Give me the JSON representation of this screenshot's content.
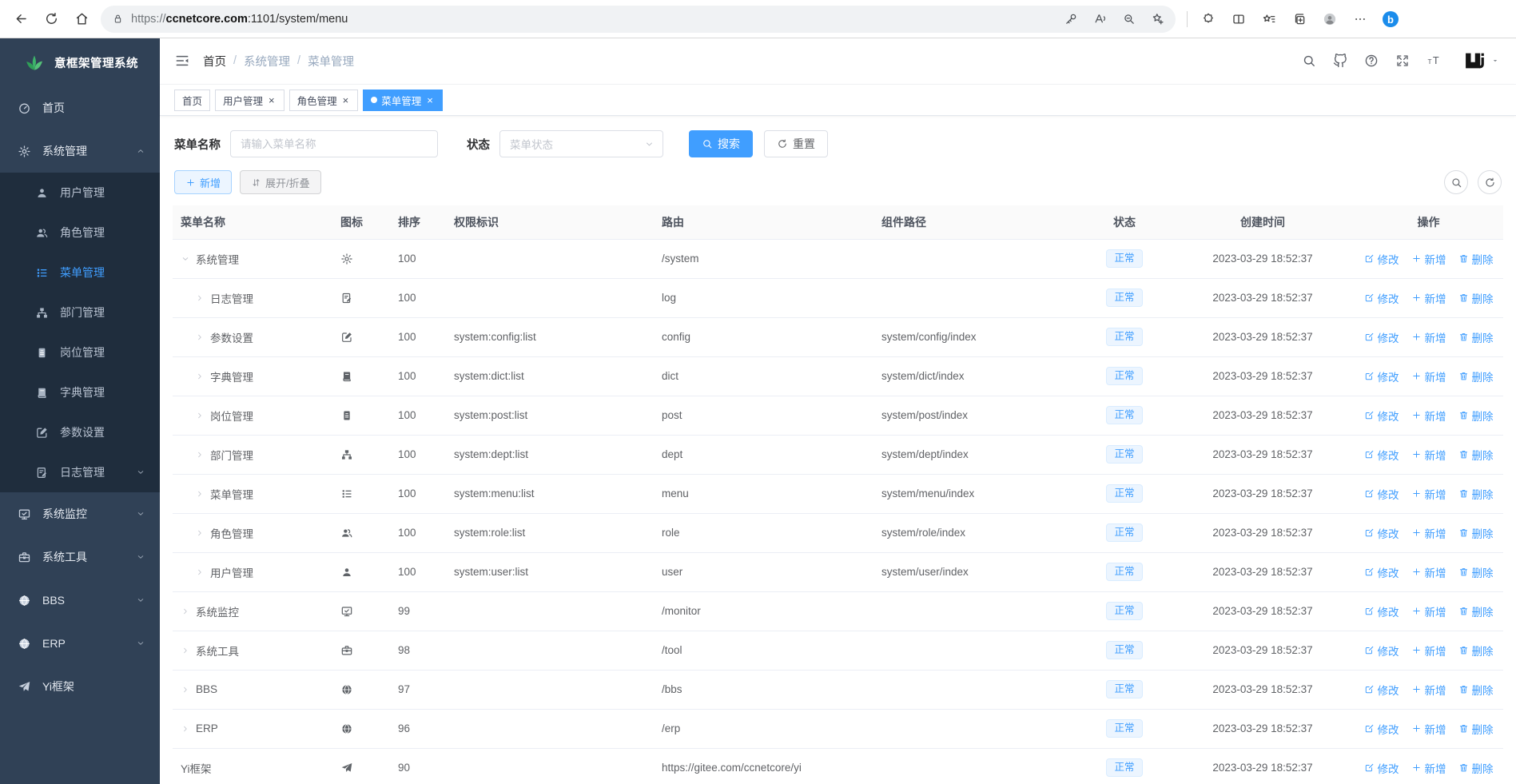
{
  "browser": {
    "nav_icons": [
      "back-icon",
      "refresh-icon",
      "home-icon"
    ],
    "url": "https://ccnetcore.com:1101/system/menu",
    "url_scheme": "https://",
    "url_host": "ccnetcore.com",
    "url_rest": ":1101/system/menu",
    "urlbar_lock_icon": "lock-icon",
    "urlbar_right_icons": [
      "key-icon",
      "read-aloud-icon",
      "search-page-icon",
      "add-favorite-icon"
    ],
    "toolbar_icons": [
      "extensions-icon",
      "split-screen-icon",
      "favorites-icon",
      "collections-icon",
      "profile-icon",
      "more-icon",
      "bing-icon"
    ]
  },
  "sidebar": {
    "logo_icon": "leaf-logo-icon",
    "logo_text": "意框架管理系统",
    "items": [
      {
        "key": "home",
        "label": "首页",
        "icon": "dashboard-icon",
        "type": "top"
      },
      {
        "key": "system",
        "label": "系统管理",
        "icon": "gear-icon",
        "type": "top",
        "chevron": "up"
      },
      {
        "key": "user",
        "label": "用户管理",
        "icon": "user-icon",
        "type": "sub"
      },
      {
        "key": "role",
        "label": "角色管理",
        "icon": "users-icon",
        "type": "sub"
      },
      {
        "key": "menu",
        "label": "菜单管理",
        "icon": "menu-icon",
        "type": "sub",
        "active": true
      },
      {
        "key": "dept",
        "label": "部门管理",
        "icon": "tree-icon",
        "type": "sub"
      },
      {
        "key": "post",
        "label": "岗位管理",
        "icon": "post-icon",
        "type": "sub"
      },
      {
        "key": "dict",
        "label": "字典管理",
        "icon": "dict-icon",
        "type": "sub"
      },
      {
        "key": "config",
        "label": "参数设置",
        "icon": "edit-icon",
        "type": "sub"
      },
      {
        "key": "log",
        "label": "日志管理",
        "icon": "log-icon",
        "type": "sub",
        "chevron": "down"
      },
      {
        "key": "monitor",
        "label": "系统监控",
        "icon": "monitor-icon",
        "type": "top",
        "chevron": "down"
      },
      {
        "key": "tool",
        "label": "系统工具",
        "icon": "tool-icon",
        "type": "top",
        "chevron": "down"
      },
      {
        "key": "bbs",
        "label": "BBS",
        "icon": "globe-icon",
        "type": "top",
        "chevron": "down"
      },
      {
        "key": "erp",
        "label": "ERP",
        "icon": "globe-icon",
        "type": "top",
        "chevron": "down"
      },
      {
        "key": "yi",
        "label": "Yi框架",
        "icon": "send-icon",
        "type": "top"
      }
    ]
  },
  "navbar": {
    "fold_icon": "fold-icon",
    "right_icons": [
      "search-icon",
      "github-icon",
      "help-icon",
      "fullscreen-icon",
      "font-size-icon"
    ],
    "avatar_icon": "yi-logo-avatar",
    "caret_icon": "caret-down-icon"
  },
  "breadcrumb": {
    "items": [
      "首页",
      "系统管理",
      "菜单管理"
    ]
  },
  "tabs": [
    {
      "key": "home",
      "label": "首页",
      "closable": false,
      "active": false
    },
    {
      "key": "user",
      "label": "用户管理",
      "closable": true,
      "active": false
    },
    {
      "key": "role",
      "label": "角色管理",
      "closable": true,
      "active": false
    },
    {
      "key": "menu",
      "label": "菜单管理",
      "closable": true,
      "active": true
    }
  ],
  "search": {
    "name_label": "菜单名称",
    "name_placeholder": "请输入菜单名称",
    "name_value": "",
    "status_label": "状态",
    "status_placeholder": "菜单状态",
    "search_button": "搜索",
    "search_icon": "search-icon",
    "reset_button": "重置",
    "reset_icon": "refresh-icon"
  },
  "toolbar": {
    "add": "新增",
    "add_icon": "plus-icon",
    "expand_collapse": "展开/折叠",
    "expand_collapse_icon": "sort-arrows-icon",
    "right_tools": [
      "search-icon",
      "refresh-icon"
    ]
  },
  "table": {
    "columns": [
      "菜单名称",
      "图标",
      "排序",
      "权限标识",
      "路由",
      "组件路径",
      "状态",
      "创建时间",
      "操作"
    ],
    "actions": [
      {
        "label": "修改",
        "icon": "edit-pen-icon"
      },
      {
        "label": "新增",
        "icon": "plus-icon"
      },
      {
        "label": "删除",
        "icon": "trash-icon"
      }
    ],
    "rows": [
      {
        "name": "系统管理",
        "icon": "gear-icon",
        "arrow": "expanded",
        "level": 0,
        "sort": "100",
        "perms": "",
        "path": "/system",
        "component": "",
        "status": "正常",
        "created": "2023-03-29 18:52:37"
      },
      {
        "name": "日志管理",
        "icon": "log-icon",
        "arrow": "collapsed",
        "level": 1,
        "sort": "100",
        "perms": "",
        "path": "log",
        "component": "",
        "status": "正常",
        "created": "2023-03-29 18:52:37"
      },
      {
        "name": "参数设置",
        "icon": "edit-icon",
        "arrow": "collapsed",
        "level": 1,
        "sort": "100",
        "perms": "system:config:list",
        "path": "config",
        "component": "system/config/index",
        "status": "正常",
        "created": "2023-03-29 18:52:37"
      },
      {
        "name": "字典管理",
        "icon": "dict-icon",
        "arrow": "collapsed",
        "level": 1,
        "sort": "100",
        "perms": "system:dict:list",
        "path": "dict",
        "component": "system/dict/index",
        "status": "正常",
        "created": "2023-03-29 18:52:37"
      },
      {
        "name": "岗位管理",
        "icon": "post-icon",
        "arrow": "collapsed",
        "level": 1,
        "sort": "100",
        "perms": "system:post:list",
        "path": "post",
        "component": "system/post/index",
        "status": "正常",
        "created": "2023-03-29 18:52:37"
      },
      {
        "name": "部门管理",
        "icon": "tree-icon",
        "arrow": "collapsed",
        "level": 1,
        "sort": "100",
        "perms": "system:dept:list",
        "path": "dept",
        "component": "system/dept/index",
        "status": "正常",
        "created": "2023-03-29 18:52:37"
      },
      {
        "name": "菜单管理",
        "icon": "menu-icon",
        "arrow": "collapsed",
        "level": 1,
        "sort": "100",
        "perms": "system:menu:list",
        "path": "menu",
        "component": "system/menu/index",
        "status": "正常",
        "created": "2023-03-29 18:52:37"
      },
      {
        "name": "角色管理",
        "icon": "users-icon",
        "arrow": "collapsed",
        "level": 1,
        "sort": "100",
        "perms": "system:role:list",
        "path": "role",
        "component": "system/role/index",
        "status": "正常",
        "created": "2023-03-29 18:52:37"
      },
      {
        "name": "用户管理",
        "icon": "user-icon",
        "arrow": "collapsed",
        "level": 1,
        "sort": "100",
        "perms": "system:user:list",
        "path": "user",
        "component": "system/user/index",
        "status": "正常",
        "created": "2023-03-29 18:52:37"
      },
      {
        "name": "系统监控",
        "icon": "monitor-icon",
        "arrow": "collapsed",
        "level": 0,
        "sort": "99",
        "perms": "",
        "path": "/monitor",
        "component": "",
        "status": "正常",
        "created": "2023-03-29 18:52:37"
      },
      {
        "name": "系统工具",
        "icon": "tool-icon",
        "arrow": "collapsed",
        "level": 0,
        "sort": "98",
        "perms": "",
        "path": "/tool",
        "component": "",
        "status": "正常",
        "created": "2023-03-29 18:52:37"
      },
      {
        "name": "BBS",
        "icon": "globe-icon",
        "arrow": "collapsed",
        "level": 0,
        "sort": "97",
        "perms": "",
        "path": "/bbs",
        "component": "",
        "status": "正常",
        "created": "2023-03-29 18:52:37"
      },
      {
        "name": "ERP",
        "icon": "globe-icon",
        "arrow": "collapsed",
        "level": 0,
        "sort": "96",
        "perms": "",
        "path": "/erp",
        "component": "",
        "status": "正常",
        "created": "2023-03-29 18:52:37"
      },
      {
        "name": "Yi框架",
        "icon": "send-icon",
        "arrow": "none",
        "level": 0,
        "sort": "90",
        "perms": "",
        "path": "https://gitee.com/ccnetcore/yi",
        "component": "",
        "status": "正常",
        "created": "2023-03-29 18:52:37"
      }
    ]
  },
  "colors": {
    "accent": "#409eff",
    "sidebar_bg": "#304156",
    "submenu_bg": "#1f2d3d",
    "badge_bg": "#ecf5ff",
    "badge_border": "#d9ecff",
    "logo_green": "#3db36a"
  }
}
